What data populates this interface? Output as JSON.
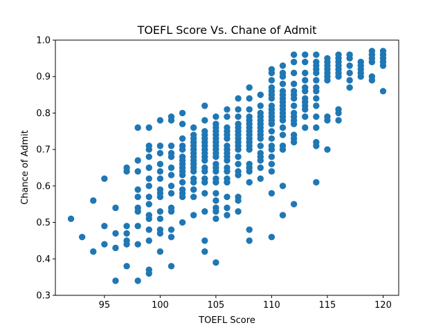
{
  "chart_data": {
    "type": "scatter",
    "title": "TOEFL Score Vs. Chane of Admit",
    "xlabel": "TOEFL Score",
    "ylabel": "Chance of Admit",
    "xlim": [
      90.6,
      121.4
    ],
    "ylim": [
      0.3,
      1.0
    ],
    "xticks": [
      95,
      100,
      105,
      110,
      115,
      120
    ],
    "yticks": [
      0.3,
      0.4,
      0.5,
      0.6,
      0.7,
      0.8,
      0.9,
      1.0
    ],
    "grid": false,
    "marker_color": "#1f77b4",
    "points": [
      [
        92,
        0.51
      ],
      [
        93,
        0.46
      ],
      [
        94,
        0.42
      ],
      [
        94,
        0.56
      ],
      [
        95,
        0.62
      ],
      [
        95,
        0.49
      ],
      [
        95,
        0.44
      ],
      [
        96,
        0.54
      ],
      [
        96,
        0.47
      ],
      [
        96,
        0.43
      ],
      [
        96,
        0.34
      ],
      [
        97,
        0.65
      ],
      [
        97,
        0.64
      ],
      [
        97,
        0.49
      ],
      [
        97,
        0.47
      ],
      [
        97,
        0.45
      ],
      [
        97,
        0.44
      ],
      [
        97,
        0.38
      ],
      [
        98,
        0.76
      ],
      [
        98,
        0.67
      ],
      [
        98,
        0.64
      ],
      [
        98,
        0.59
      ],
      [
        98,
        0.57
      ],
      [
        98,
        0.54
      ],
      [
        98,
        0.53
      ],
      [
        98,
        0.49
      ],
      [
        98,
        0.44
      ],
      [
        98,
        0.34
      ],
      [
        99,
        0.76
      ],
      [
        99,
        0.71
      ],
      [
        99,
        0.7
      ],
      [
        99,
        0.68
      ],
      [
        99,
        0.65
      ],
      [
        99,
        0.62
      ],
      [
        99,
        0.6
      ],
      [
        99,
        0.57
      ],
      [
        99,
        0.55
      ],
      [
        99,
        0.52
      ],
      [
        99,
        0.51
      ],
      [
        99,
        0.48
      ],
      [
        99,
        0.45
      ],
      [
        99,
        0.37
      ],
      [
        99,
        0.36
      ],
      [
        100,
        0.78
      ],
      [
        100,
        0.71
      ],
      [
        100,
        0.69
      ],
      [
        100,
        0.66
      ],
      [
        100,
        0.64
      ],
      [
        100,
        0.62
      ],
      [
        100,
        0.59
      ],
      [
        100,
        0.58
      ],
      [
        100,
        0.57
      ],
      [
        100,
        0.53
      ],
      [
        100,
        0.51
      ],
      [
        100,
        0.48
      ],
      [
        100,
        0.47
      ],
      [
        100,
        0.42
      ],
      [
        101,
        0.79
      ],
      [
        101,
        0.78
      ],
      [
        101,
        0.71
      ],
      [
        101,
        0.69
      ],
      [
        101,
        0.68
      ],
      [
        101,
        0.65
      ],
      [
        101,
        0.63
      ],
      [
        101,
        0.6
      ],
      [
        101,
        0.58
      ],
      [
        101,
        0.54
      ],
      [
        101,
        0.53
      ],
      [
        101,
        0.48
      ],
      [
        101,
        0.46
      ],
      [
        101,
        0.38
      ],
      [
        102,
        0.8
      ],
      [
        102,
        0.77
      ],
      [
        102,
        0.73
      ],
      [
        102,
        0.71
      ],
      [
        102,
        0.7
      ],
      [
        102,
        0.68
      ],
      [
        102,
        0.67
      ],
      [
        102,
        0.66
      ],
      [
        102,
        0.65
      ],
      [
        102,
        0.64
      ],
      [
        102,
        0.63
      ],
      [
        102,
        0.61
      ],
      [
        102,
        0.59
      ],
      [
        102,
        0.58
      ],
      [
        102,
        0.57
      ],
      [
        102,
        0.5
      ],
      [
        103,
        0.76
      ],
      [
        103,
        0.74
      ],
      [
        103,
        0.73
      ],
      [
        103,
        0.72
      ],
      [
        103,
        0.71
      ],
      [
        103,
        0.7
      ],
      [
        103,
        0.69
      ],
      [
        103,
        0.68
      ],
      [
        103,
        0.67
      ],
      [
        103,
        0.66
      ],
      [
        103,
        0.65
      ],
      [
        103,
        0.64
      ],
      [
        103,
        0.62
      ],
      [
        103,
        0.61
      ],
      [
        103,
        0.59
      ],
      [
        103,
        0.57
      ],
      [
        103,
        0.52
      ],
      [
        104,
        0.82
      ],
      [
        104,
        0.78
      ],
      [
        104,
        0.75
      ],
      [
        104,
        0.74
      ],
      [
        104,
        0.73
      ],
      [
        104,
        0.72
      ],
      [
        104,
        0.71
      ],
      [
        104,
        0.7
      ],
      [
        104,
        0.69
      ],
      [
        104,
        0.68
      ],
      [
        104,
        0.67
      ],
      [
        104,
        0.65
      ],
      [
        104,
        0.64
      ],
      [
        104,
        0.62
      ],
      [
        104,
        0.61
      ],
      [
        104,
        0.58
      ],
      [
        104,
        0.53
      ],
      [
        104,
        0.45
      ],
      [
        104,
        0.42
      ],
      [
        105,
        0.79
      ],
      [
        105,
        0.77
      ],
      [
        105,
        0.76
      ],
      [
        105,
        0.75
      ],
      [
        105,
        0.74
      ],
      [
        105,
        0.73
      ],
      [
        105,
        0.72
      ],
      [
        105,
        0.71
      ],
      [
        105,
        0.7
      ],
      [
        105,
        0.69
      ],
      [
        105,
        0.68
      ],
      [
        105,
        0.66
      ],
      [
        105,
        0.65
      ],
      [
        105,
        0.64
      ],
      [
        105,
        0.62
      ],
      [
        105,
        0.61
      ],
      [
        105,
        0.58
      ],
      [
        105,
        0.56
      ],
      [
        105,
        0.54
      ],
      [
        105,
        0.53
      ],
      [
        105,
        0.51
      ],
      [
        105,
        0.39
      ],
      [
        106,
        0.81
      ],
      [
        106,
        0.79
      ],
      [
        106,
        0.76
      ],
      [
        106,
        0.75
      ],
      [
        106,
        0.74
      ],
      [
        106,
        0.73
      ],
      [
        106,
        0.71
      ],
      [
        106,
        0.7
      ],
      [
        106,
        0.69
      ],
      [
        106,
        0.68
      ],
      [
        106,
        0.67
      ],
      [
        106,
        0.65
      ],
      [
        106,
        0.64
      ],
      [
        106,
        0.62
      ],
      [
        106,
        0.61
      ],
      [
        106,
        0.57
      ],
      [
        106,
        0.54
      ],
      [
        106,
        0.52
      ],
      [
        107,
        0.84
      ],
      [
        107,
        0.81
      ],
      [
        107,
        0.79
      ],
      [
        107,
        0.77
      ],
      [
        107,
        0.76
      ],
      [
        107,
        0.75
      ],
      [
        107,
        0.74
      ],
      [
        107,
        0.73
      ],
      [
        107,
        0.72
      ],
      [
        107,
        0.71
      ],
      [
        107,
        0.7
      ],
      [
        107,
        0.68
      ],
      [
        107,
        0.66
      ],
      [
        107,
        0.64
      ],
      [
        107,
        0.63
      ],
      [
        107,
        0.57
      ],
      [
        107,
        0.56
      ],
      [
        107,
        0.53
      ],
      [
        108,
        0.87
      ],
      [
        108,
        0.84
      ],
      [
        108,
        0.81
      ],
      [
        108,
        0.79
      ],
      [
        108,
        0.78
      ],
      [
        108,
        0.77
      ],
      [
        108,
        0.76
      ],
      [
        108,
        0.75
      ],
      [
        108,
        0.74
      ],
      [
        108,
        0.73
      ],
      [
        108,
        0.72
      ],
      [
        108,
        0.71
      ],
      [
        108,
        0.7
      ],
      [
        108,
        0.66
      ],
      [
        108,
        0.65
      ],
      [
        108,
        0.64
      ],
      [
        108,
        0.61
      ],
      [
        108,
        0.48
      ],
      [
        108,
        0.45
      ],
      [
        109,
        0.85
      ],
      [
        109,
        0.82
      ],
      [
        109,
        0.8
      ],
      [
        109,
        0.79
      ],
      [
        109,
        0.78
      ],
      [
        109,
        0.77
      ],
      [
        109,
        0.76
      ],
      [
        109,
        0.75
      ],
      [
        109,
        0.74
      ],
      [
        109,
        0.73
      ],
      [
        109,
        0.71
      ],
      [
        109,
        0.69
      ],
      [
        109,
        0.68
      ],
      [
        109,
        0.67
      ],
      [
        109,
        0.65
      ],
      [
        109,
        0.62
      ],
      [
        110,
        0.92
      ],
      [
        110,
        0.91
      ],
      [
        110,
        0.89
      ],
      [
        110,
        0.87
      ],
      [
        110,
        0.86
      ],
      [
        110,
        0.85
      ],
      [
        110,
        0.84
      ],
      [
        110,
        0.82
      ],
      [
        110,
        0.81
      ],
      [
        110,
        0.8
      ],
      [
        110,
        0.79
      ],
      [
        110,
        0.78
      ],
      [
        110,
        0.77
      ],
      [
        110,
        0.75
      ],
      [
        110,
        0.73
      ],
      [
        110,
        0.71
      ],
      [
        110,
        0.7
      ],
      [
        110,
        0.68
      ],
      [
        110,
        0.66
      ],
      [
        110,
        0.64
      ],
      [
        110,
        0.58
      ],
      [
        110,
        0.46
      ],
      [
        111,
        0.93
      ],
      [
        111,
        0.91
      ],
      [
        111,
        0.9
      ],
      [
        111,
        0.88
      ],
      [
        111,
        0.86
      ],
      [
        111,
        0.85
      ],
      [
        111,
        0.84
      ],
      [
        111,
        0.83
      ],
      [
        111,
        0.82
      ],
      [
        111,
        0.81
      ],
      [
        111,
        0.8
      ],
      [
        111,
        0.79
      ],
      [
        111,
        0.78
      ],
      [
        111,
        0.76
      ],
      [
        111,
        0.74
      ],
      [
        111,
        0.71
      ],
      [
        111,
        0.7
      ],
      [
        111,
        0.6
      ],
      [
        111,
        0.52
      ],
      [
        112,
        0.96
      ],
      [
        112,
        0.94
      ],
      [
        112,
        0.91
      ],
      [
        112,
        0.88
      ],
      [
        112,
        0.86
      ],
      [
        112,
        0.85
      ],
      [
        112,
        0.84
      ],
      [
        112,
        0.82
      ],
      [
        112,
        0.8
      ],
      [
        112,
        0.79
      ],
      [
        112,
        0.78
      ],
      [
        112,
        0.77
      ],
      [
        112,
        0.74
      ],
      [
        112,
        0.73
      ],
      [
        112,
        0.72
      ],
      [
        112,
        0.55
      ],
      [
        113,
        0.96
      ],
      [
        113,
        0.94
      ],
      [
        113,
        0.91
      ],
      [
        113,
        0.89
      ],
      [
        113,
        0.87
      ],
      [
        113,
        0.86
      ],
      [
        113,
        0.84
      ],
      [
        113,
        0.83
      ],
      [
        113,
        0.82
      ],
      [
        113,
        0.81
      ],
      [
        113,
        0.79
      ],
      [
        113,
        0.76
      ],
      [
        114,
        0.96
      ],
      [
        114,
        0.94
      ],
      [
        114,
        0.93
      ],
      [
        114,
        0.92
      ],
      [
        114,
        0.91
      ],
      [
        114,
        0.89
      ],
      [
        114,
        0.87
      ],
      [
        114,
        0.86
      ],
      [
        114,
        0.84
      ],
      [
        114,
        0.82
      ],
      [
        114,
        0.79
      ],
      [
        114,
        0.76
      ],
      [
        114,
        0.72
      ],
      [
        114,
        0.71
      ],
      [
        114,
        0.61
      ],
      [
        115,
        0.95
      ],
      [
        115,
        0.94
      ],
      [
        115,
        0.93
      ],
      [
        115,
        0.92
      ],
      [
        115,
        0.91
      ],
      [
        115,
        0.9
      ],
      [
        115,
        0.89
      ],
      [
        115,
        0.79
      ],
      [
        115,
        0.78
      ],
      [
        115,
        0.7
      ],
      [
        116,
        0.96
      ],
      [
        116,
        0.95
      ],
      [
        116,
        0.94
      ],
      [
        116,
        0.93
      ],
      [
        116,
        0.92
      ],
      [
        116,
        0.91
      ],
      [
        116,
        0.9
      ],
      [
        116,
        0.81
      ],
      [
        116,
        0.8
      ],
      [
        116,
        0.78
      ],
      [
        117,
        0.96
      ],
      [
        117,
        0.95
      ],
      [
        117,
        0.93
      ],
      [
        117,
        0.91
      ],
      [
        117,
        0.89
      ],
      [
        117,
        0.87
      ],
      [
        118,
        0.94
      ],
      [
        118,
        0.93
      ],
      [
        118,
        0.92
      ],
      [
        118,
        0.91
      ],
      [
        118,
        0.9
      ],
      [
        119,
        0.97
      ],
      [
        119,
        0.96
      ],
      [
        119,
        0.95
      ],
      [
        119,
        0.94
      ],
      [
        119,
        0.9
      ],
      [
        119,
        0.89
      ],
      [
        120,
        0.97
      ],
      [
        120,
        0.96
      ],
      [
        120,
        0.95
      ],
      [
        120,
        0.94
      ],
      [
        120,
        0.93
      ],
      [
        120,
        0.86
      ]
    ]
  }
}
